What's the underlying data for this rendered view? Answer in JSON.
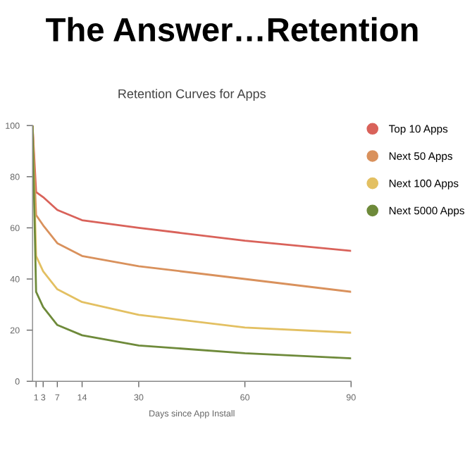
{
  "chart_data": {
    "type": "line",
    "title": "The Answer…Retention",
    "subtitle": "Retention Curves for Apps",
    "xlabel": "Days since App Install",
    "x": [
      0,
      1,
      3,
      7,
      14,
      30,
      60,
      90
    ],
    "series": [
      {
        "name": "Top 10 Apps",
        "color": "#d9625a",
        "values": [
          100,
          74,
          72,
          67,
          63,
          60,
          55,
          51
        ]
      },
      {
        "name": "Next 50 Apps",
        "color": "#d9915c",
        "values": [
          100,
          65,
          61,
          54,
          49,
          45,
          40,
          35
        ]
      },
      {
        "name": "Next 100 Apps",
        "color": "#e3c062",
        "values": [
          100,
          49,
          43,
          36,
          31,
          26,
          21,
          19
        ]
      },
      {
        "name": "Next 5000 Apps",
        "color": "#6e8a3a",
        "values": [
          100,
          35,
          29,
          22,
          18,
          14,
          11,
          9
        ]
      }
    ],
    "xlim": [
      0,
      90
    ],
    "xticks": [
      1,
      3,
      7,
      14,
      30,
      60,
      90
    ],
    "ylim": [
      0,
      100
    ],
    "yticks": [
      0,
      20,
      40,
      60,
      80,
      100
    ],
    "grid": false,
    "legend": "right",
    "marker": "none",
    "line_style": "solid"
  }
}
